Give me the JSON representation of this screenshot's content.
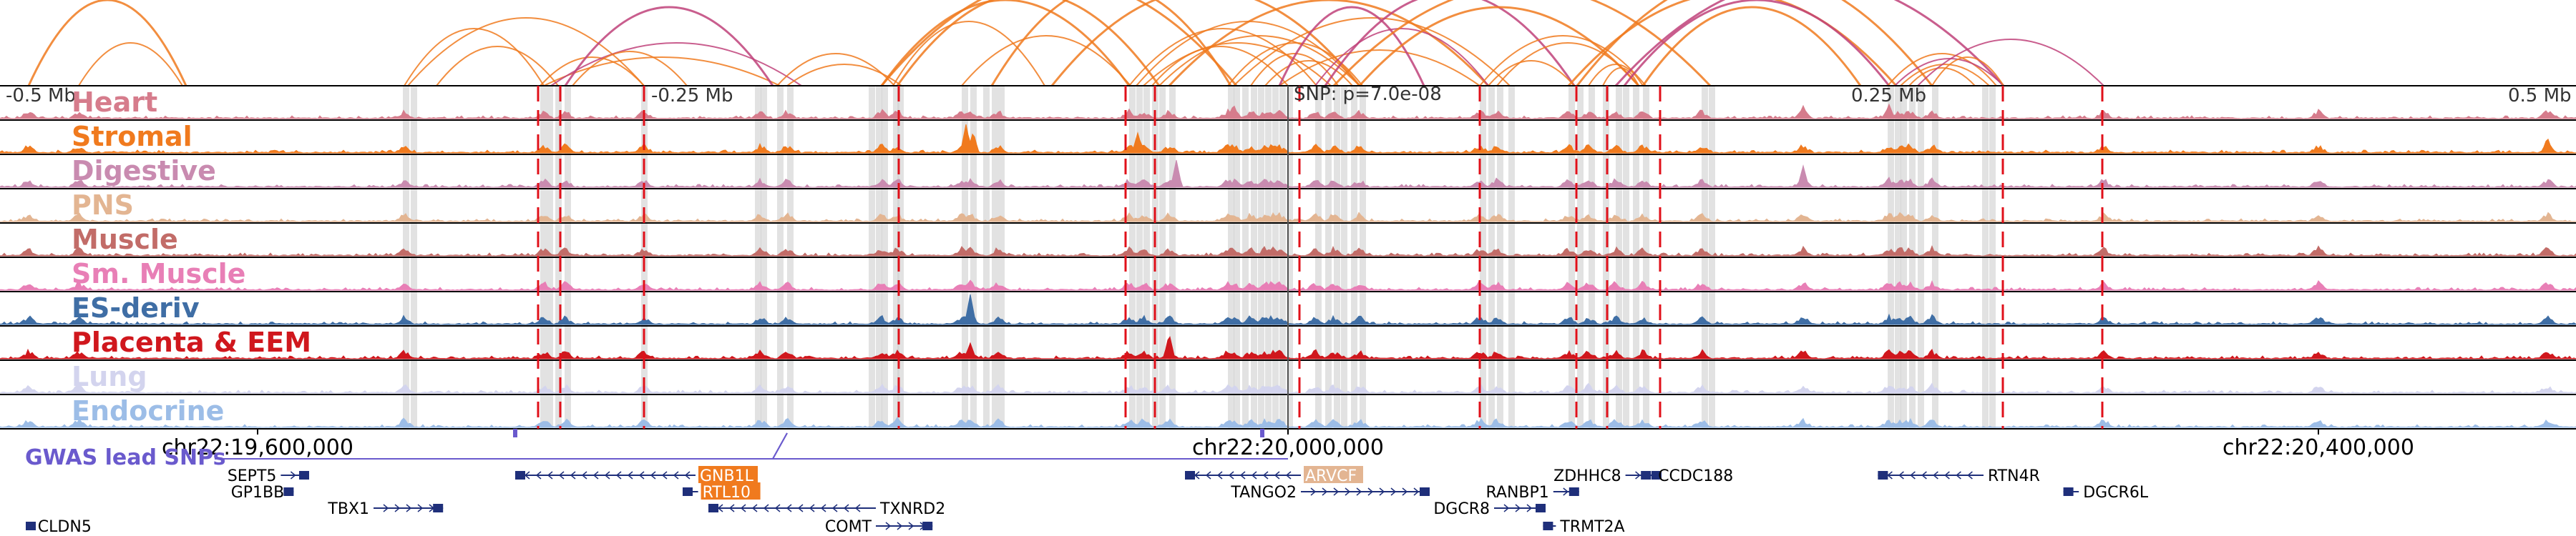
{
  "offset_labels": {
    "left": "-0.5 Mb",
    "left_mid": "-0.25 Mb",
    "snp": "SNP: p=7.0e-08",
    "right_mid": "0.25 Mb",
    "right": "0.5 Mb"
  },
  "tracks": [
    {
      "label": "Heart",
      "color": "#d67c8c"
    },
    {
      "label": "Stromal",
      "color": "#f07a1e"
    },
    {
      "label": "Digestive",
      "color": "#c98bb0"
    },
    {
      "label": "PNS",
      "color": "#e3b592"
    },
    {
      "label": "Muscle",
      "color": "#c26c68"
    },
    {
      "label": "Sm. Muscle",
      "color": "#e87fb6"
    },
    {
      "label": "ES-deriv",
      "color": "#3f6ea5"
    },
    {
      "label": "Placenta & EEM",
      "color": "#d0171d"
    },
    {
      "label": "Lung",
      "color": "#d3d4ee"
    },
    {
      "label": "Endocrine",
      "color": "#9cbde7"
    }
  ],
  "coordinates": {
    "start": 19500000,
    "end": 20500000,
    "ticks": [
      {
        "value": 19600000,
        "label": "chr22:19,600,000"
      },
      {
        "value": 20000000,
        "label": "chr22:20,000,000"
      },
      {
        "value": 20400000,
        "label": "chr22:20,400,000"
      }
    ]
  },
  "gwas": {
    "label": "GWAS lead SNPs",
    "color": "#6a5acd",
    "snp_positions": [
      19700000,
      19990000
    ]
  },
  "colors": {
    "highlight_bar": "#cfcfcf",
    "dashed_boundary": "#e0101a",
    "arc_orange": "#f07a1e",
    "arc_magenta": "#c0427a",
    "gene": "#1f2f7a",
    "gene_highlight_orange": "#f07a1e",
    "gene_highlight_peach": "#e3b592"
  },
  "genes": [
    {
      "label": "SEPT5",
      "start": 19609000,
      "end": 19620000,
      "row": 0,
      "strand": "+",
      "label_side": "left"
    },
    {
      "label": "GP1BB",
      "start": 19612000,
      "end": 19614000,
      "row": 1,
      "strand": "+",
      "label_side": "left"
    },
    {
      "label": "TBX1",
      "start": 19645000,
      "end": 19672000,
      "row": 2,
      "strand": "+",
      "label_side": "left"
    },
    {
      "label": "GNB1L",
      "start": 19700000,
      "end": 19770000,
      "row": 0,
      "strand": "-",
      "label_side": "right",
      "highlight": "orange"
    },
    {
      "label": "RTL10",
      "start": 19765000,
      "end": 19771000,
      "row": 1,
      "strand": "-",
      "label_side": "right",
      "highlight": "orange"
    },
    {
      "label": "TXNRD2",
      "start": 19775000,
      "end": 19840000,
      "row": 2,
      "strand": "-",
      "label_side": "right"
    },
    {
      "label": "COMT",
      "start": 19840000,
      "end": 19862000,
      "row": 3,
      "strand": "+",
      "label_side": "left"
    },
    {
      "label": "ARVCF",
      "start": 19960000,
      "end": 20005000,
      "row": 0,
      "strand": "-",
      "label_side": "right",
      "highlight": "peach"
    },
    {
      "label": "TANGO2",
      "start": 20005000,
      "end": 20055000,
      "row": 1,
      "strand": "+",
      "label_side": "left"
    },
    {
      "label": "DGCR8",
      "start": 20080000,
      "end": 20100000,
      "row": 2,
      "strand": "+",
      "label_side": "left"
    },
    {
      "label": "RANBP1",
      "start": 20103000,
      "end": 20113000,
      "row": 1,
      "strand": "+",
      "label_side": "left"
    },
    {
      "label": "ZDHHC8",
      "start": 20131000,
      "end": 20145000,
      "row": 0,
      "strand": "+",
      "label_side": "left"
    },
    {
      "label": "CCDC188",
      "start": 20137000,
      "end": 20142000,
      "row": 0,
      "strand": "-",
      "label_side": "right"
    },
    {
      "label": "TRMT2A",
      "start": 20099000,
      "end": 20104000,
      "row": 3,
      "strand": "-",
      "label_side": "right"
    },
    {
      "label": "RTN4R",
      "start": 20229000,
      "end": 20270000,
      "row": 0,
      "strand": "-",
      "label_side": "right"
    },
    {
      "label": "DGCR6L",
      "start": 20301000,
      "end": 20307000,
      "row": 1,
      "strand": "-",
      "label_side": "right"
    },
    {
      "label": "CLDN5",
      "start": 19510000,
      "end": 19513000,
      "row": 3,
      "strand": "-",
      "label_side": "right"
    }
  ]
}
